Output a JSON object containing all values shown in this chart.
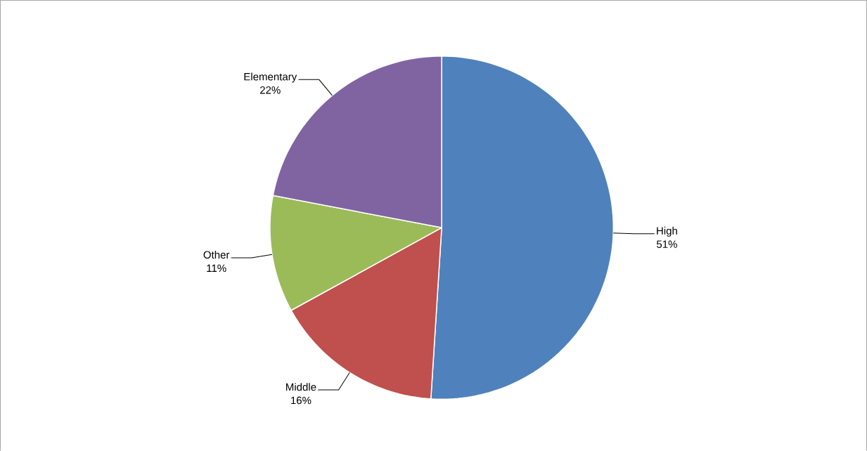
{
  "chart_data": {
    "type": "pie",
    "categories": [
      "High",
      "Middle",
      "Other",
      "Elementary"
    ],
    "values": [
      51,
      16,
      11,
      22
    ],
    "colors": [
      "#4f81bd",
      "#c0504d",
      "#9bbb59",
      "#8064a2"
    ],
    "value_labels": [
      "51%",
      "16%",
      "11%",
      "22%"
    ]
  }
}
